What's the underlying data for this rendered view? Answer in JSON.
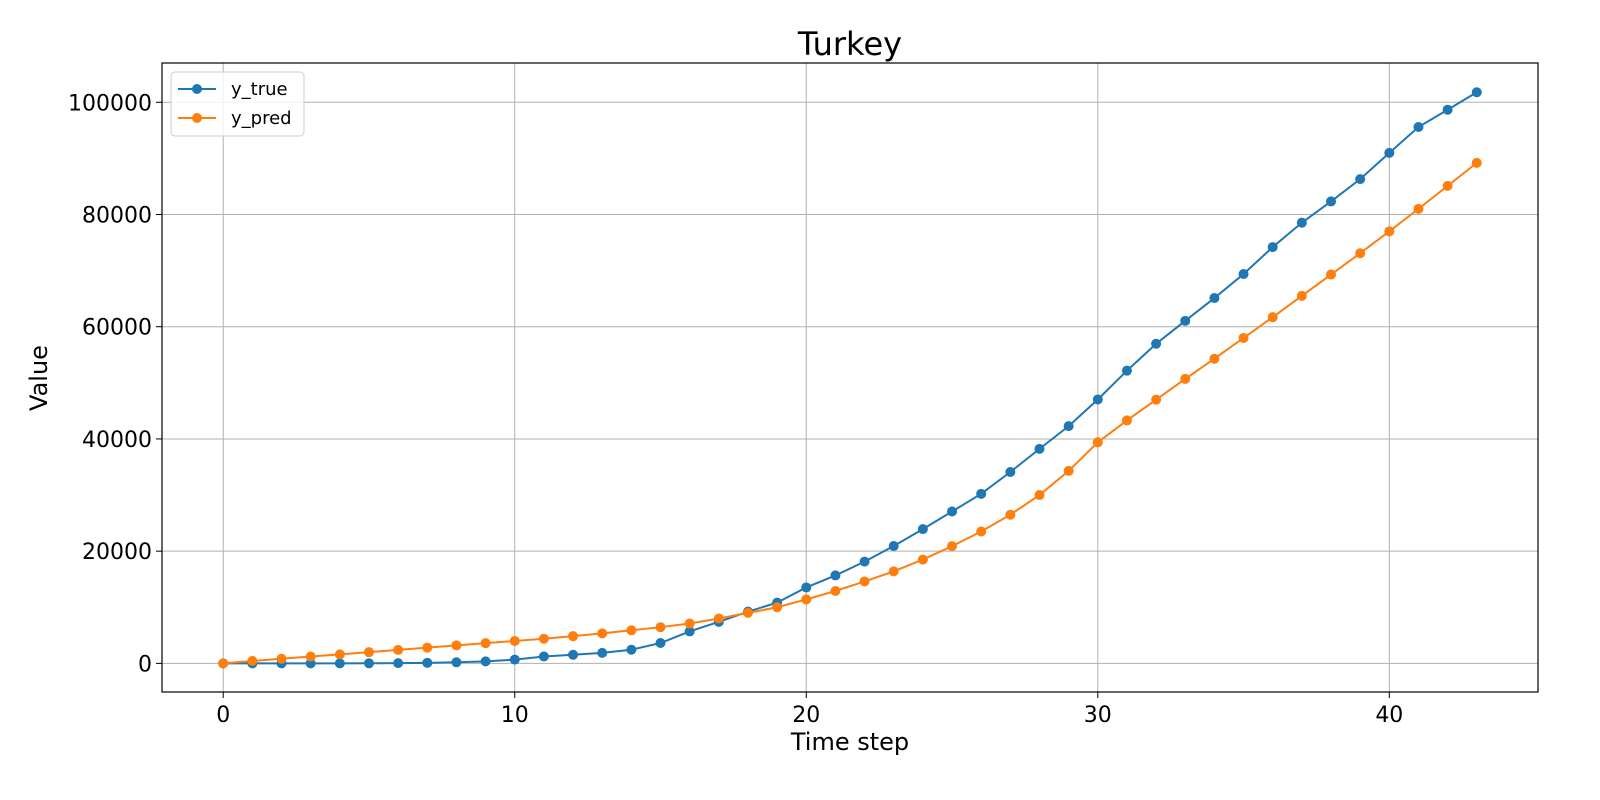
{
  "chart_data": {
    "type": "line",
    "title": "Turkey",
    "xlabel": "Time step",
    "ylabel": "Value",
    "xlim": [
      -2.1,
      45.1
    ],
    "ylim": [
      -5100,
      107000
    ],
    "xticks": [
      0,
      10,
      20,
      30,
      40
    ],
    "yticks": [
      0,
      20000,
      40000,
      60000,
      80000,
      100000
    ],
    "grid": true,
    "legend_position": "upper-left",
    "x": [
      0,
      1,
      2,
      3,
      4,
      5,
      6,
      7,
      8,
      9,
      10,
      11,
      12,
      13,
      14,
      15,
      16,
      17,
      18,
      19,
      20,
      21,
      22,
      23,
      24,
      25,
      26,
      27,
      28,
      29,
      30,
      31,
      32,
      33,
      34,
      35,
      36,
      37,
      38,
      39,
      40,
      41,
      42,
      43
    ],
    "series": [
      {
        "name": "y_true",
        "color": "#1f77b4",
        "values": [
          1,
          5,
          5,
          5,
          6,
          18,
          47,
          98,
          191,
          359,
          670,
          1236,
          1529,
          1872,
          2433,
          3629,
          5698,
          7402,
          9217,
          10827,
          13531,
          15679,
          18135,
          20921,
          23934,
          27069,
          30217,
          34109,
          38226,
          42282,
          47029,
          52167,
          56956,
          61049,
          65111,
          69392,
          74193,
          78546,
          82329,
          86306,
          90980,
          95591,
          98674,
          101790
        ]
      },
      {
        "name": "y_pred",
        "color": "#ff7f0e",
        "values": [
          0,
          420,
          830,
          1220,
          1600,
          2000,
          2400,
          2800,
          3200,
          3600,
          4000,
          4400,
          4850,
          5350,
          5900,
          6450,
          7100,
          8000,
          9000,
          10000,
          11400,
          12900,
          14600,
          16400,
          18500,
          20900,
          23500,
          26500,
          30000,
          34300,
          39400,
          43300,
          47000,
          50700,
          54300,
          58000,
          61700,
          65500,
          69300,
          73100,
          77000,
          81000,
          85100,
          89200
        ]
      }
    ]
  }
}
